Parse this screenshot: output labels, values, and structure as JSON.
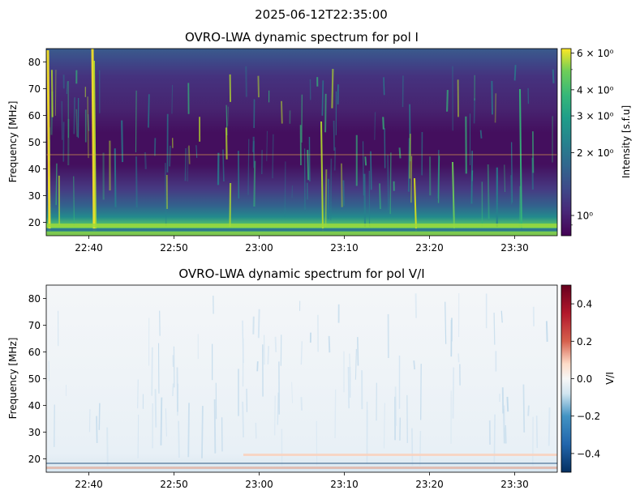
{
  "figure": {
    "suptitle": "2025-06-12T22:35:00"
  },
  "colors": {
    "viridis_low": "#440154",
    "viridis_high": "#fde725",
    "rdbu_low": "#053061",
    "rdbu_mid": "#f7f7f7",
    "rdbu_high": "#67001f"
  },
  "chart_data": [
    {
      "type": "heatmap",
      "title": "OVRO-LWA dynamic spectrum for pol I",
      "xlabel": "",
      "ylabel": "Frequency [MHz]",
      "x_range": [
        "22:35",
        "23:35"
      ],
      "xticks": [
        "22:40",
        "22:50",
        "23:00",
        "23:10",
        "23:20",
        "23:30"
      ],
      "ylim": [
        15,
        85
      ],
      "yticks": [
        20,
        30,
        40,
        50,
        60,
        70,
        80
      ],
      "colormap": "viridis",
      "colorbar": {
        "label": "Intensity [s.f.u]",
        "scale": "log",
        "range": [
          0.8,
          6.3
        ],
        "ticks": [
          {
            "value": 6,
            "label": "6 × 10⁰"
          },
          {
            "value": 4,
            "label": "4 × 10⁰"
          },
          {
            "value": 3,
            "label": "3 × 10⁰"
          },
          {
            "value": 2,
            "label": "2 × 10⁰"
          },
          {
            "value": 1,
            "label": "10⁰"
          }
        ]
      },
      "features": {
        "hline_freq_mhz": 45,
        "bright_bursts_time": [
          "22:35",
          "22:40"
        ],
        "low_band_mhz": [
          15,
          20
        ]
      }
    },
    {
      "type": "heatmap",
      "title": "OVRO-LWA dynamic spectrum for pol V/I",
      "xlabel": "",
      "ylabel": "Frequency [MHz]",
      "x_range": [
        "22:35",
        "23:35"
      ],
      "xticks": [
        "22:40",
        "22:50",
        "23:00",
        "23:10",
        "23:20",
        "23:30"
      ],
      "ylim": [
        15,
        85
      ],
      "yticks": [
        20,
        30,
        40,
        50,
        60,
        70,
        80
      ],
      "colormap": "RdBu_r",
      "colorbar": {
        "label": "V/I",
        "scale": "linear",
        "range": [
          -0.5,
          0.5
        ],
        "ticks": [
          {
            "value": 0.4,
            "label": "0.4"
          },
          {
            "value": 0.2,
            "label": "0.2"
          },
          {
            "value": 0.0,
            "label": "0.0"
          },
          {
            "value": -0.2,
            "label": "−0.2"
          },
          {
            "value": -0.4,
            "label": "−0.4"
          }
        ]
      }
    }
  ]
}
